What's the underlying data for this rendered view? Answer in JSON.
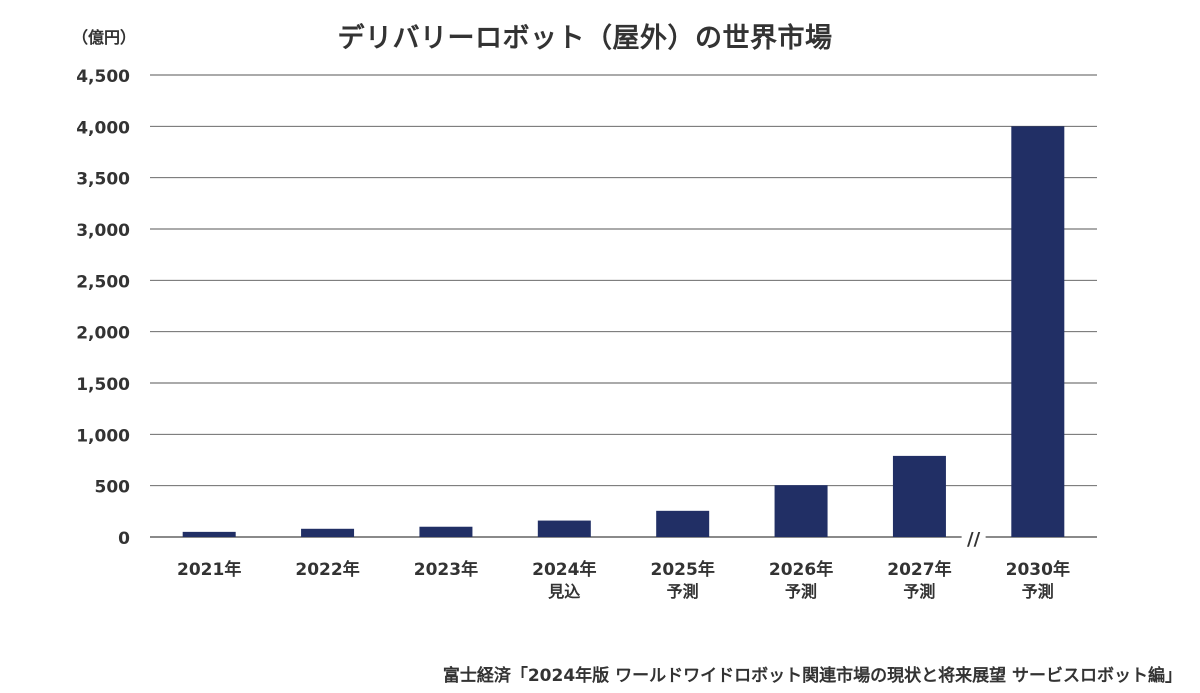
{
  "chart_data": {
    "type": "bar",
    "title": "デリバリーロボット（屋外）の世界市場",
    "unit_label": "（億円）",
    "ylim": [
      0,
      4500
    ],
    "yticks": [
      0,
      500,
      1000,
      1500,
      2000,
      2500,
      3000,
      3500,
      4000,
      4500
    ],
    "ytick_labels": [
      "0",
      "500",
      "1,000",
      "1,500",
      "2,000",
      "2,500",
      "3,000",
      "3,500",
      "4,000",
      "4,500"
    ],
    "grid": true,
    "bar_color": "#212f65",
    "axis_break_label": "//",
    "categories": [
      {
        "year": "2021年",
        "note": ""
      },
      {
        "year": "2022年",
        "note": ""
      },
      {
        "year": "2023年",
        "note": ""
      },
      {
        "year": "2024年",
        "note": "見込"
      },
      {
        "year": "2025年",
        "note": "予測"
      },
      {
        "year": "2026年",
        "note": "予測"
      },
      {
        "year": "2027年",
        "note": "予測"
      },
      {
        "year": "2030年",
        "note": "予測"
      }
    ],
    "values": [
      50,
      80,
      100,
      160,
      255,
      505,
      790,
      4000
    ]
  },
  "source": "富士経済「2024年版 ワールドワイドロボット関連市場の現状と将来展望 サービスロボット編」"
}
